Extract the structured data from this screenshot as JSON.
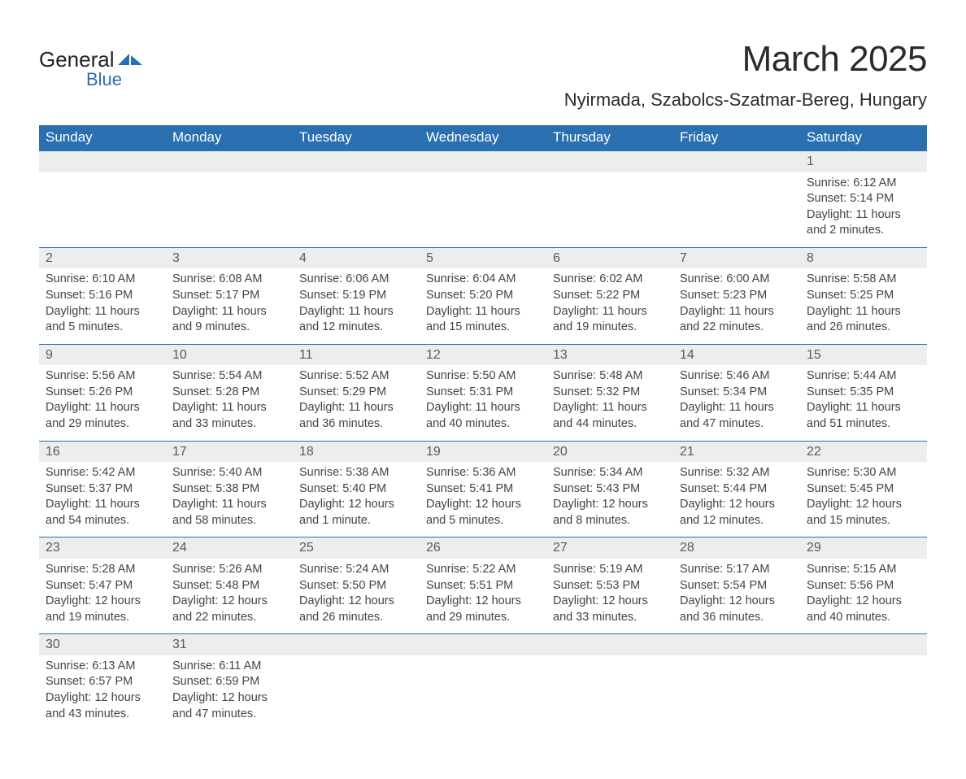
{
  "logo": {
    "text_general": "General",
    "text_blue": "Blue",
    "color_dark": "#222222",
    "color_blue": "#2a6fb0"
  },
  "title": "March 2025",
  "location": "Nyirmada, Szabolcs-Szatmar-Bereg, Hungary",
  "style": {
    "header_bg": "#2a6fb0",
    "header_fg": "#ffffff",
    "daynum_bg": "#eceeee",
    "border_color": "#2a6fb0",
    "text_color": "#444444",
    "title_fontsize": 44,
    "location_fontsize": 22,
    "dayheader_fontsize": 17,
    "cell_fontsize": 14.5
  },
  "day_names": [
    "Sunday",
    "Monday",
    "Tuesday",
    "Wednesday",
    "Thursday",
    "Friday",
    "Saturday"
  ],
  "weeks": [
    [
      null,
      null,
      null,
      null,
      null,
      null,
      {
        "n": "1",
        "sr": "Sunrise: 6:12 AM",
        "ss": "Sunset: 5:14 PM",
        "dl": "Daylight: 11 hours and 2 minutes."
      }
    ],
    [
      {
        "n": "2",
        "sr": "Sunrise: 6:10 AM",
        "ss": "Sunset: 5:16 PM",
        "dl": "Daylight: 11 hours and 5 minutes."
      },
      {
        "n": "3",
        "sr": "Sunrise: 6:08 AM",
        "ss": "Sunset: 5:17 PM",
        "dl": "Daylight: 11 hours and 9 minutes."
      },
      {
        "n": "4",
        "sr": "Sunrise: 6:06 AM",
        "ss": "Sunset: 5:19 PM",
        "dl": "Daylight: 11 hours and 12 minutes."
      },
      {
        "n": "5",
        "sr": "Sunrise: 6:04 AM",
        "ss": "Sunset: 5:20 PM",
        "dl": "Daylight: 11 hours and 15 minutes."
      },
      {
        "n": "6",
        "sr": "Sunrise: 6:02 AM",
        "ss": "Sunset: 5:22 PM",
        "dl": "Daylight: 11 hours and 19 minutes."
      },
      {
        "n": "7",
        "sr": "Sunrise: 6:00 AM",
        "ss": "Sunset: 5:23 PM",
        "dl": "Daylight: 11 hours and 22 minutes."
      },
      {
        "n": "8",
        "sr": "Sunrise: 5:58 AM",
        "ss": "Sunset: 5:25 PM",
        "dl": "Daylight: 11 hours and 26 minutes."
      }
    ],
    [
      {
        "n": "9",
        "sr": "Sunrise: 5:56 AM",
        "ss": "Sunset: 5:26 PM",
        "dl": "Daylight: 11 hours and 29 minutes."
      },
      {
        "n": "10",
        "sr": "Sunrise: 5:54 AM",
        "ss": "Sunset: 5:28 PM",
        "dl": "Daylight: 11 hours and 33 minutes."
      },
      {
        "n": "11",
        "sr": "Sunrise: 5:52 AM",
        "ss": "Sunset: 5:29 PM",
        "dl": "Daylight: 11 hours and 36 minutes."
      },
      {
        "n": "12",
        "sr": "Sunrise: 5:50 AM",
        "ss": "Sunset: 5:31 PM",
        "dl": "Daylight: 11 hours and 40 minutes."
      },
      {
        "n": "13",
        "sr": "Sunrise: 5:48 AM",
        "ss": "Sunset: 5:32 PM",
        "dl": "Daylight: 11 hours and 44 minutes."
      },
      {
        "n": "14",
        "sr": "Sunrise: 5:46 AM",
        "ss": "Sunset: 5:34 PM",
        "dl": "Daylight: 11 hours and 47 minutes."
      },
      {
        "n": "15",
        "sr": "Sunrise: 5:44 AM",
        "ss": "Sunset: 5:35 PM",
        "dl": "Daylight: 11 hours and 51 minutes."
      }
    ],
    [
      {
        "n": "16",
        "sr": "Sunrise: 5:42 AM",
        "ss": "Sunset: 5:37 PM",
        "dl": "Daylight: 11 hours and 54 minutes."
      },
      {
        "n": "17",
        "sr": "Sunrise: 5:40 AM",
        "ss": "Sunset: 5:38 PM",
        "dl": "Daylight: 11 hours and 58 minutes."
      },
      {
        "n": "18",
        "sr": "Sunrise: 5:38 AM",
        "ss": "Sunset: 5:40 PM",
        "dl": "Daylight: 12 hours and 1 minute."
      },
      {
        "n": "19",
        "sr": "Sunrise: 5:36 AM",
        "ss": "Sunset: 5:41 PM",
        "dl": "Daylight: 12 hours and 5 minutes."
      },
      {
        "n": "20",
        "sr": "Sunrise: 5:34 AM",
        "ss": "Sunset: 5:43 PM",
        "dl": "Daylight: 12 hours and 8 minutes."
      },
      {
        "n": "21",
        "sr": "Sunrise: 5:32 AM",
        "ss": "Sunset: 5:44 PM",
        "dl": "Daylight: 12 hours and 12 minutes."
      },
      {
        "n": "22",
        "sr": "Sunrise: 5:30 AM",
        "ss": "Sunset: 5:45 PM",
        "dl": "Daylight: 12 hours and 15 minutes."
      }
    ],
    [
      {
        "n": "23",
        "sr": "Sunrise: 5:28 AM",
        "ss": "Sunset: 5:47 PM",
        "dl": "Daylight: 12 hours and 19 minutes."
      },
      {
        "n": "24",
        "sr": "Sunrise: 5:26 AM",
        "ss": "Sunset: 5:48 PM",
        "dl": "Daylight: 12 hours and 22 minutes."
      },
      {
        "n": "25",
        "sr": "Sunrise: 5:24 AM",
        "ss": "Sunset: 5:50 PM",
        "dl": "Daylight: 12 hours and 26 minutes."
      },
      {
        "n": "26",
        "sr": "Sunrise: 5:22 AM",
        "ss": "Sunset: 5:51 PM",
        "dl": "Daylight: 12 hours and 29 minutes."
      },
      {
        "n": "27",
        "sr": "Sunrise: 5:19 AM",
        "ss": "Sunset: 5:53 PM",
        "dl": "Daylight: 12 hours and 33 minutes."
      },
      {
        "n": "28",
        "sr": "Sunrise: 5:17 AM",
        "ss": "Sunset: 5:54 PM",
        "dl": "Daylight: 12 hours and 36 minutes."
      },
      {
        "n": "29",
        "sr": "Sunrise: 5:15 AM",
        "ss": "Sunset: 5:56 PM",
        "dl": "Daylight: 12 hours and 40 minutes."
      }
    ],
    [
      {
        "n": "30",
        "sr": "Sunrise: 6:13 AM",
        "ss": "Sunset: 6:57 PM",
        "dl": "Daylight: 12 hours and 43 minutes."
      },
      {
        "n": "31",
        "sr": "Sunrise: 6:11 AM",
        "ss": "Sunset: 6:59 PM",
        "dl": "Daylight: 12 hours and 47 minutes."
      },
      null,
      null,
      null,
      null,
      null
    ]
  ]
}
